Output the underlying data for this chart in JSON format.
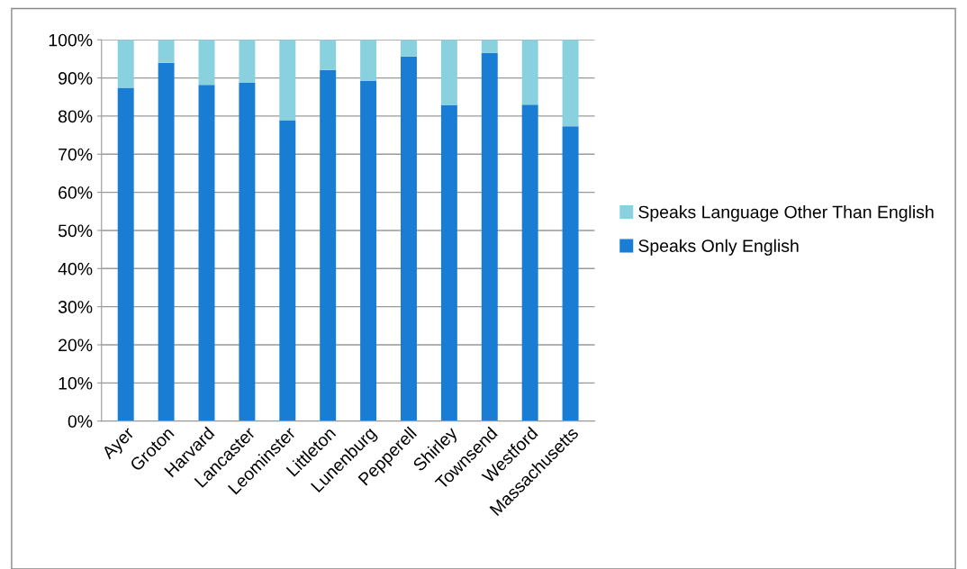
{
  "chart_data": {
    "type": "bar",
    "stacked": true,
    "categories": [
      "Ayer",
      "Groton",
      "Harvard",
      "Lancaster",
      "Leominster",
      "Littleton",
      "Lunenburg",
      "Pepperell",
      "Shirley",
      "Townsend",
      "Westford",
      "Massachusetts"
    ],
    "series": [
      {
        "name": "Speaks Only English",
        "color": "#1a7dd4",
        "values": [
          87.4,
          94.0,
          88.2,
          88.7,
          78.9,
          92.1,
          89.2,
          95.6,
          82.8,
          96.6,
          83.0,
          77.3
        ]
      },
      {
        "name": "Speaks Language Other Than English",
        "color": "#8ad1e0",
        "values": [
          12.6,
          6.0,
          11.8,
          11.3,
          21.1,
          7.9,
          10.8,
          4.4,
          17.2,
          3.4,
          17.0,
          22.7
        ]
      }
    ],
    "ylim": [
      0,
      100
    ],
    "yticks": [
      {
        "value": 0,
        "label": "0%"
      },
      {
        "value": 10,
        "label": "10%"
      },
      {
        "value": 20,
        "label": "20%"
      },
      {
        "value": 30,
        "label": "30%"
      },
      {
        "value": 40,
        "label": "40%"
      },
      {
        "value": 50,
        "label": "50%"
      },
      {
        "value": 60,
        "label": "60%"
      },
      {
        "value": 70,
        "label": "70%"
      },
      {
        "value": 80,
        "label": "80%"
      },
      {
        "value": 90,
        "label": "90%"
      },
      {
        "value": 100,
        "label": "100%"
      }
    ],
    "grid": "y",
    "legend": "right"
  }
}
